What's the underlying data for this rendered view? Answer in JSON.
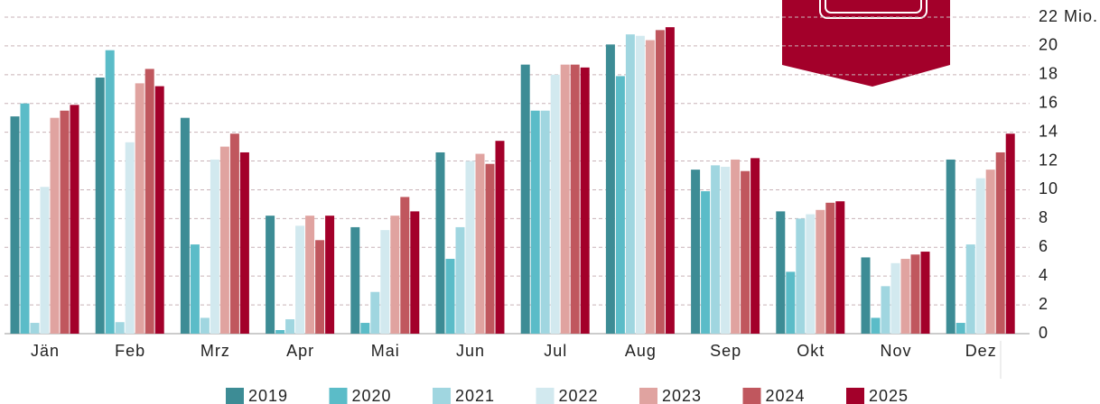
{
  "chart_data": {
    "type": "bar",
    "categories": [
      "Jän",
      "Feb",
      "Mrz",
      "Apr",
      "Mai",
      "Jun",
      "Jul",
      "Aug",
      "Sep",
      "Okt",
      "Nov",
      "Dez"
    ],
    "series": [
      {
        "name": "2019",
        "color": "#3d8c95",
        "values": [
          15.1,
          17.8,
          15.0,
          8.2,
          7.4,
          12.6,
          18.7,
          20.1,
          11.4,
          8.5,
          5.3,
          12.1
        ]
      },
      {
        "name": "2020",
        "color": "#5bbcc8",
        "values": [
          16.0,
          19.7,
          6.2,
          0.25,
          0.75,
          5.2,
          15.5,
          17.9,
          9.9,
          4.3,
          1.1,
          0.75
        ]
      },
      {
        "name": "2021",
        "color": "#a0d6e0",
        "values": [
          0.75,
          0.8,
          1.1,
          1.0,
          2.9,
          7.4,
          15.5,
          20.8,
          11.7,
          8.0,
          3.3,
          6.2
        ]
      },
      {
        "name": "2022",
        "color": "#d2e9ef",
        "values": [
          10.2,
          13.3,
          12.1,
          7.5,
          7.2,
          12.0,
          18.0,
          20.7,
          11.6,
          8.3,
          4.9,
          10.8
        ]
      },
      {
        "name": "2023",
        "color": "#e0a3a0",
        "values": [
          15.0,
          17.4,
          13.0,
          8.2,
          8.2,
          12.5,
          18.7,
          20.4,
          12.1,
          8.6,
          5.2,
          11.4
        ]
      },
      {
        "name": "2024",
        "color": "#c0575e",
        "values": [
          15.5,
          18.4,
          13.9,
          6.5,
          9.5,
          11.8,
          18.7,
          21.1,
          11.3,
          9.1,
          5.5,
          12.6
        ]
      },
      {
        "name": "2025",
        "color": "#a3002a",
        "values": [
          15.9,
          17.2,
          12.6,
          8.2,
          8.5,
          13.4,
          18.5,
          21.3,
          12.2,
          9.2,
          5.7,
          13.9
        ]
      }
    ],
    "ylim": [
      0,
      22
    ],
    "yticks": [
      0,
      2,
      4,
      6,
      8,
      10,
      12,
      14,
      16,
      18,
      20,
      {
        "value": 22,
        "label": "22 Mio."
      }
    ],
    "grid": true,
    "legend": "bottom"
  }
}
